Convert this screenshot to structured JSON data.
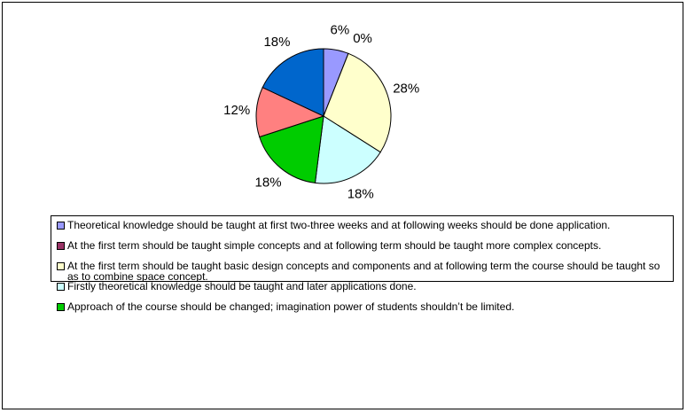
{
  "chart_data": {
    "type": "pie",
    "categories": [
      "Theoretical knowledge should be taught at first two-three weeks and at following weeks should be done application.",
      "At the first term should be taught simple concepts and at following term should be taught more complex concepts.",
      "At the first term should be taught basic design concepts and components and at following term the course should be taught so as to combine space concept.",
      "Firstly theoretical knowledge should be taught and later applications done.",
      "Approach of the course should be changed; imagination power of students shouldn’t be limited.",
      null,
      null
    ],
    "values": [
      6,
      0,
      28,
      18,
      18,
      12,
      18
    ],
    "value_labels": [
      "6%",
      "0%",
      "28%",
      "18%",
      "18%",
      "12%",
      "18%"
    ],
    "colors": [
      "#9999FF",
      "#993366",
      "#FFFFCC",
      "#CCFFFF",
      "#00CC00",
      "#FF8080",
      "#0066CC"
    ]
  }
}
